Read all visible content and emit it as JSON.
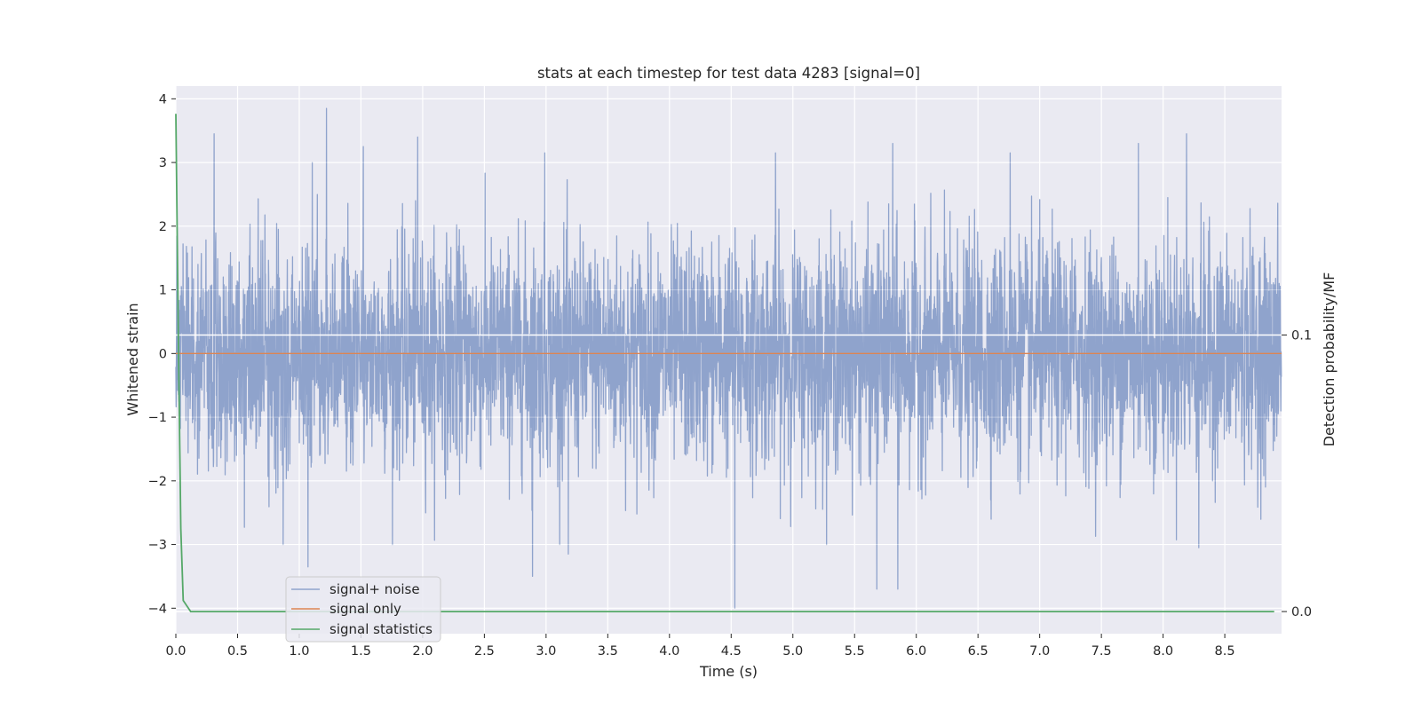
{
  "chart_data": {
    "type": "line",
    "title": "stats at each timestep for test data 4283 [signal=0]",
    "xlabel": "Time (s)",
    "ylabel": "Whitened strain",
    "y2label": "Detection probability/MF",
    "xlim": [
      0.0,
      8.96
    ],
    "ylim": [
      -4.4,
      4.2
    ],
    "y2lim": [
      -0.008,
      0.19
    ],
    "x_ticks": [
      0.0,
      0.5,
      1.0,
      1.5,
      2.0,
      2.5,
      3.0,
      3.5,
      4.0,
      4.5,
      5.0,
      5.5,
      6.0,
      6.5,
      7.0,
      7.5,
      8.0,
      8.5
    ],
    "x_tick_labels": [
      "0.0",
      "0.5",
      "1.0",
      "1.5",
      "2.0",
      "2.5",
      "3.0",
      "3.5",
      "4.0",
      "4.5",
      "5.0",
      "5.5",
      "6.0",
      "6.5",
      "7.0",
      "7.5",
      "8.0",
      "8.5"
    ],
    "y_ticks": [
      4,
      3,
      2,
      1,
      0,
      -1,
      -2,
      -3,
      -4
    ],
    "y_tick_labels": [
      "4",
      "3",
      "2",
      "1",
      "0",
      "−1",
      "−2",
      "−3",
      "−4"
    ],
    "y2_ticks": [
      0.1,
      0.0
    ],
    "y2_tick_labels": [
      "0.1",
      "0.0"
    ],
    "grid": true,
    "legend_position": "lower-left",
    "series": [
      {
        "name": "signal+ noise",
        "axis": "left",
        "color": "#8fa3cc",
        "kind": "noise",
        "sample_interval": 0.00195,
        "typical_range": [
          -1.6,
          1.6
        ],
        "peaks": [
          {
            "x": 0.31,
            "y": 3.45
          },
          {
            "x": 1.22,
            "y": 3.85
          },
          {
            "x": 1.52,
            "y": 3.25
          },
          {
            "x": 1.96,
            "y": 3.4
          },
          {
            "x": 2.99,
            "y": 3.15
          },
          {
            "x": 4.86,
            "y": 3.15
          },
          {
            "x": 5.81,
            "y": 3.3
          },
          {
            "x": 8.19,
            "y": 3.45
          },
          {
            "x": 7.8,
            "y": 3.3
          },
          {
            "x": 6.76,
            "y": 3.15
          },
          {
            "x": 1.07,
            "y": -3.35
          },
          {
            "x": 2.89,
            "y": -3.5
          },
          {
            "x": 4.53,
            "y": -4.0
          },
          {
            "x": 5.68,
            "y": -3.7
          },
          {
            "x": 5.85,
            "y": -3.7
          },
          {
            "x": 8.29,
            "y": -3.05
          },
          {
            "x": 0.87,
            "y": -3.0
          },
          {
            "x": 3.18,
            "y": -3.15
          }
        ]
      },
      {
        "name": "signal only",
        "axis": "left",
        "color": "#dd8452",
        "kind": "line",
        "x": [
          0.0,
          8.96
        ],
        "y": [
          0.0,
          0.0
        ]
      },
      {
        "name": "signal statistics",
        "axis": "right",
        "color": "#55a868",
        "kind": "line",
        "x": [
          0.0,
          0.02,
          0.04,
          0.06,
          0.12,
          8.9
        ],
        "y": [
          0.18,
          0.1,
          0.03,
          0.004,
          0.0,
          0.0
        ]
      }
    ]
  }
}
